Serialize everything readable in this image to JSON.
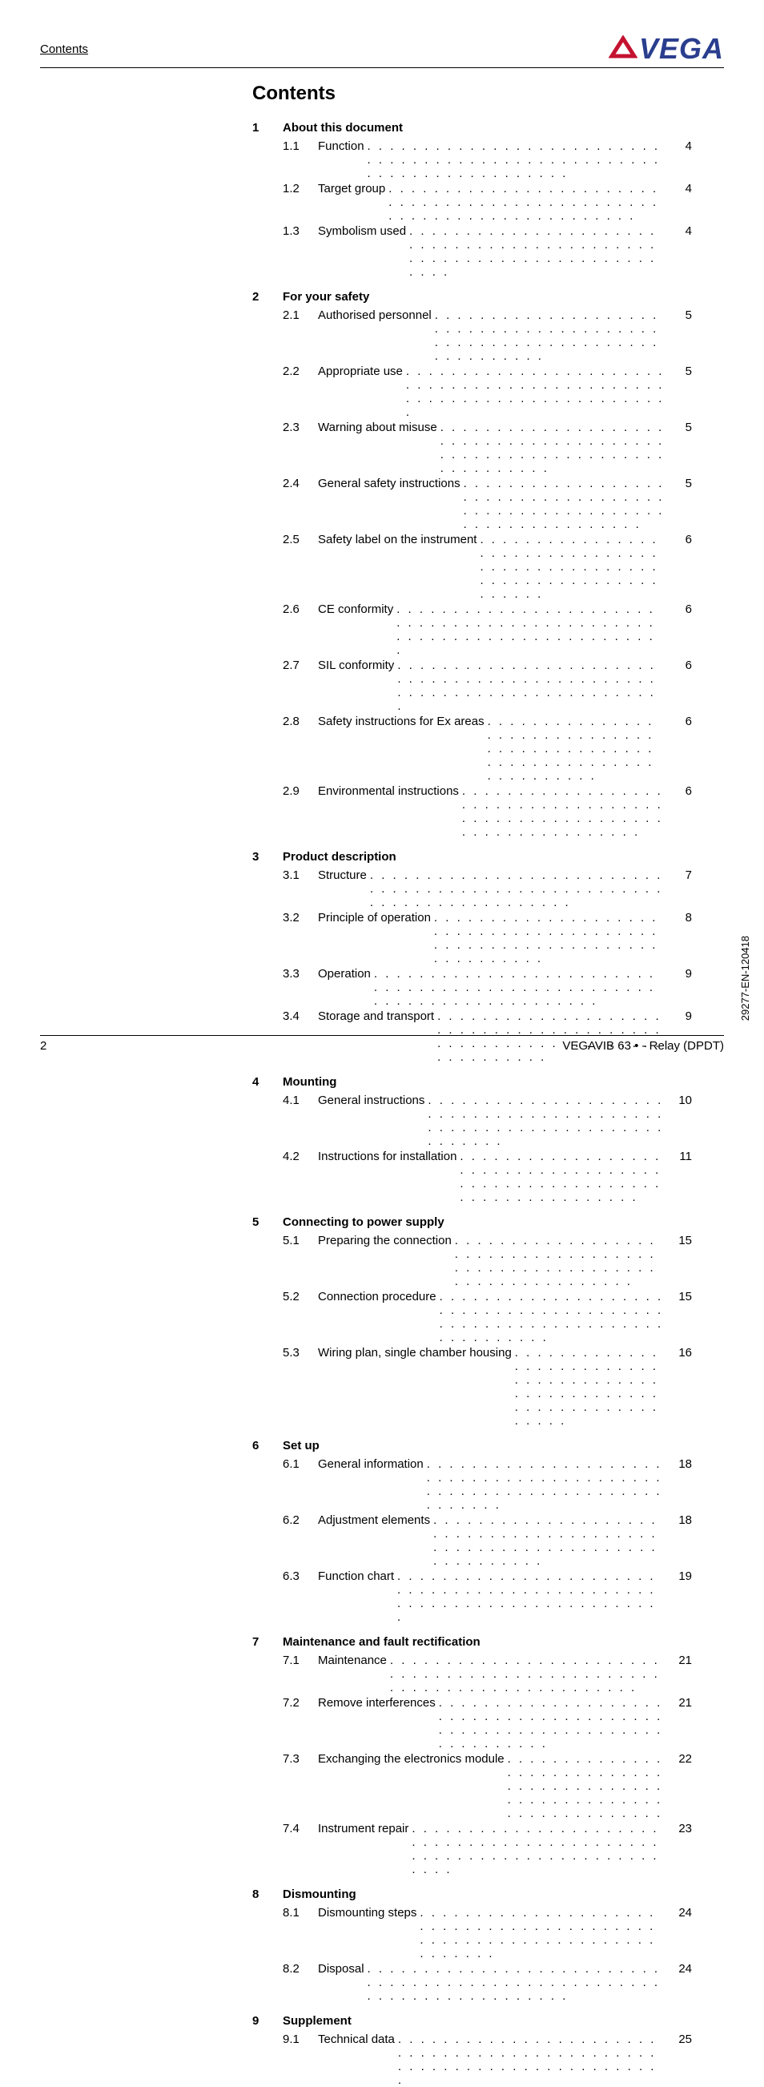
{
  "header": {
    "left": "Contents"
  },
  "logo": {
    "text": "VEGA",
    "color": "#2a3e8e",
    "triangle_color": "#c41230"
  },
  "title": "Contents",
  "footer": {
    "page": "2",
    "right": "VEGAVIB 63 • - Relay (DPDT)"
  },
  "side_code": "29277-EN-120418",
  "dots": ". . . . . . . . . . . . . . . . . . . . . . . . . . . . . . . . . . . . . . . . . . . . . . . . . . . . . . . . . . . . . . . . . . . . . .",
  "sections": [
    {
      "num": "1",
      "title": "About this document",
      "items": [
        {
          "sub": "1.1",
          "text": "Function",
          "page": "4"
        },
        {
          "sub": "1.2",
          "text": "Target group",
          "page": "4"
        },
        {
          "sub": "1.3",
          "text": "Symbolism used",
          "page": "4"
        }
      ]
    },
    {
      "num": "2",
      "title": "For your safety",
      "items": [
        {
          "sub": "2.1",
          "text": "Authorised personnel",
          "page": "5"
        },
        {
          "sub": "2.2",
          "text": "Appropriate use",
          "page": "5"
        },
        {
          "sub": "2.3",
          "text": "Warning about misuse",
          "page": "5"
        },
        {
          "sub": "2.4",
          "text": "General safety instructions",
          "page": "5"
        },
        {
          "sub": "2.5",
          "text": "Safety label on the instrument",
          "page": "6"
        },
        {
          "sub": "2.6",
          "text": "CE conformity",
          "page": "6"
        },
        {
          "sub": "2.7",
          "text": "SIL conformity",
          "page": "6"
        },
        {
          "sub": "2.8",
          "text": "Safety instructions for Ex areas",
          "page": "6"
        },
        {
          "sub": "2.9",
          "text": "Environmental instructions",
          "page": "6"
        }
      ]
    },
    {
      "num": "3",
      "title": "Product description",
      "items": [
        {
          "sub": "3.1",
          "text": "Structure",
          "page": "7"
        },
        {
          "sub": "3.2",
          "text": "Principle of operation",
          "page": "8"
        },
        {
          "sub": "3.3",
          "text": "Operation",
          "page": "9"
        },
        {
          "sub": "3.4",
          "text": "Storage and transport",
          "page": "9"
        }
      ]
    },
    {
      "num": "4",
      "title": "Mounting",
      "items": [
        {
          "sub": "4.1",
          "text": "General instructions",
          "page": "10"
        },
        {
          "sub": "4.2",
          "text": "Instructions for installation",
          "page": "11"
        }
      ]
    },
    {
      "num": "5",
      "title": "Connecting to power supply",
      "items": [
        {
          "sub": "5.1",
          "text": "Preparing the connection",
          "page": "15"
        },
        {
          "sub": "5.2",
          "text": "Connection procedure",
          "page": "15"
        },
        {
          "sub": "5.3",
          "text": "Wiring plan, single chamber housing",
          "page": "16"
        }
      ]
    },
    {
      "num": "6",
      "title": "Set up",
      "items": [
        {
          "sub": "6.1",
          "text": "General information",
          "page": "18"
        },
        {
          "sub": "6.2",
          "text": "Adjustment elements",
          "page": "18"
        },
        {
          "sub": "6.3",
          "text": "Function chart",
          "page": "19"
        }
      ]
    },
    {
      "num": "7",
      "title": "Maintenance and fault rectification",
      "items": [
        {
          "sub": "7.1",
          "text": "Maintenance",
          "page": "21"
        },
        {
          "sub": "7.2",
          "text": "Remove interferences",
          "page": "21"
        },
        {
          "sub": "7.3",
          "text": "Exchanging the electronics module",
          "page": "22"
        },
        {
          "sub": "7.4",
          "text": "Instrument repair",
          "page": "23"
        }
      ]
    },
    {
      "num": "8",
      "title": "Dismounting",
      "items": [
        {
          "sub": "8.1",
          "text": "Dismounting steps",
          "page": "24"
        },
        {
          "sub": "8.2",
          "text": "Disposal",
          "page": "24"
        }
      ]
    },
    {
      "num": "9",
      "title": "Supplement",
      "items": [
        {
          "sub": "9.1",
          "text": "Technical data",
          "page": "25"
        }
      ]
    }
  ]
}
